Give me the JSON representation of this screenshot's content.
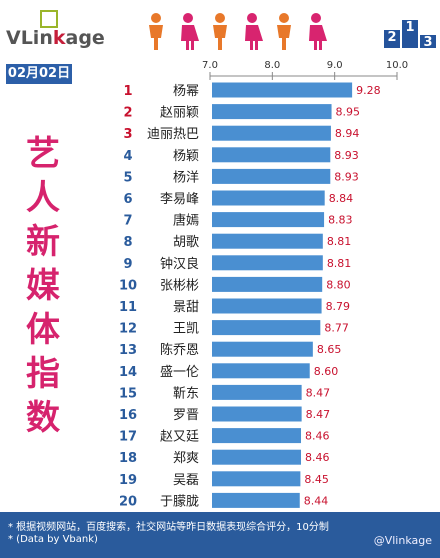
{
  "brand": {
    "prefix": "VLin",
    "highlight": "k",
    "suffix": "age"
  },
  "date": "02月02日",
  "side_title": [
    "艺",
    "人",
    "新",
    "媒",
    "体",
    "指",
    "数"
  ],
  "podium_labels": [
    "2",
    "1",
    "3"
  ],
  "footnote": {
    "line1": "* 根据视频网站，百度搜索，社交网站等昨日数据表现综合评分，10分制",
    "line2": "* (Data by Vbank)",
    "credit": "@Vlinkage"
  },
  "colors": {
    "bar": "#4a8fd1",
    "rank": "#c8112e",
    "value": "#c8112e",
    "panel": "#2a5b9c",
    "title": "#d6236d"
  },
  "chart_data": {
    "type": "bar",
    "orientation": "horizontal",
    "title": "艺人新媒体指数",
    "xlim": [
      7.0,
      10.0
    ],
    "xticks": [
      "7.0",
      "8.0",
      "9.0",
      "10.0"
    ],
    "grid": false,
    "categories": [
      "杨幂",
      "赵丽颖",
      "迪丽热巴",
      "杨颖",
      "杨洋",
      "李易峰",
      "唐嫣",
      "胡歌",
      "钟汉良",
      "张彬彬",
      "景甜",
      "王凯",
      "陈乔恩",
      "盛一伦",
      "靳东",
      "罗晋",
      "赵又廷",
      "郑爽",
      "吴磊",
      "于朦胧"
    ],
    "ranks": [
      "1",
      "2",
      "3",
      "4",
      "5",
      "6",
      "7",
      "8",
      "9",
      "10",
      "11",
      "12",
      "13",
      "14",
      "15",
      "16",
      "17",
      "18",
      "19",
      "20"
    ],
    "values": [
      9.28,
      8.95,
      8.94,
      8.93,
      8.93,
      8.84,
      8.83,
      8.81,
      8.81,
      8.8,
      8.79,
      8.77,
      8.65,
      8.6,
      8.47,
      8.47,
      8.46,
      8.46,
      8.45,
      8.44
    ],
    "labels": [
      "9.28",
      "8.95",
      "8.94",
      "8.93",
      "8.93",
      "8.84",
      "8.83",
      "8.81",
      "8.81",
      "8.80",
      "8.79",
      "8.77",
      "8.65",
      "8.60",
      "8.47",
      "8.47",
      "8.46",
      "8.46",
      "8.45",
      "8.44"
    ]
  }
}
